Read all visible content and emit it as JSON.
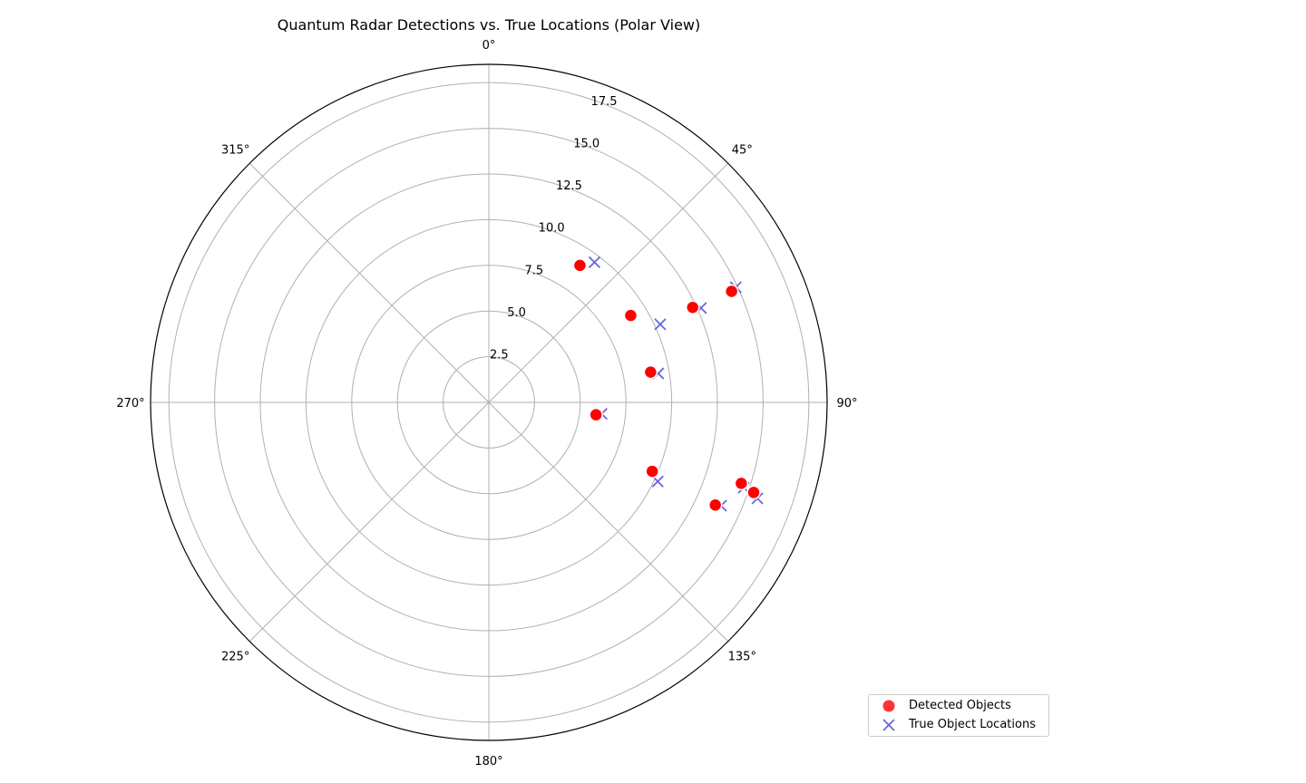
{
  "chart_data": {
    "type": "scatter",
    "projection": "polar",
    "title": "Quantum Radar Detections vs. True Locations (Polar View)",
    "theta_zero": "N",
    "theta_direction": "clockwise",
    "theta_ticks": [
      "0°",
      "45°",
      "90°",
      "135°",
      "180°",
      "225°",
      "270°",
      "315°"
    ],
    "theta_tick_values": [
      0,
      45,
      90,
      135,
      180,
      225,
      270,
      315
    ],
    "r_ticks": [
      "2.5",
      "5.0",
      "7.5",
      "10.0",
      "12.5",
      "15.0",
      "17.5"
    ],
    "r_tick_values": [
      2.5,
      5.0,
      7.5,
      10.0,
      12.5,
      15.0,
      17.5
    ],
    "rlim": [
      0,
      18.5
    ],
    "grid": true,
    "legend_position": "bottom-right",
    "series": [
      {
        "name": "Detected Objects",
        "marker": "circle",
        "color": "#ff0000",
        "points": [
          {
            "theta": 33.6,
            "r": 9.0
          },
          {
            "theta": 65.4,
            "r": 14.6
          },
          {
            "theta": 58.5,
            "r": 9.1
          },
          {
            "theta": 65.0,
            "r": 12.3
          },
          {
            "theta": 79.4,
            "r": 9.0
          },
          {
            "theta": 96.6,
            "r": 5.9
          },
          {
            "theta": 112.9,
            "r": 9.7
          },
          {
            "theta": 114.4,
            "r": 13.6
          },
          {
            "theta": 107.8,
            "r": 14.5
          },
          {
            "theta": 108.8,
            "r": 15.3
          }
        ]
      },
      {
        "name": "True Object Locations",
        "marker": "x",
        "color": "#6666dd",
        "points": [
          {
            "theta": 37.0,
            "r": 9.6
          },
          {
            "theta": 65.0,
            "r": 14.9
          },
          {
            "theta": 65.5,
            "r": 10.3
          },
          {
            "theta": 66.0,
            "r": 12.7
          },
          {
            "theta": 80.3,
            "r": 9.4
          },
          {
            "theta": 95.8,
            "r": 6.2
          },
          {
            "theta": 115.1,
            "r": 10.2
          },
          {
            "theta": 114.0,
            "r": 13.9
          },
          {
            "theta": 108.5,
            "r": 14.7
          },
          {
            "theta": 109.7,
            "r": 15.6
          }
        ]
      }
    ]
  }
}
